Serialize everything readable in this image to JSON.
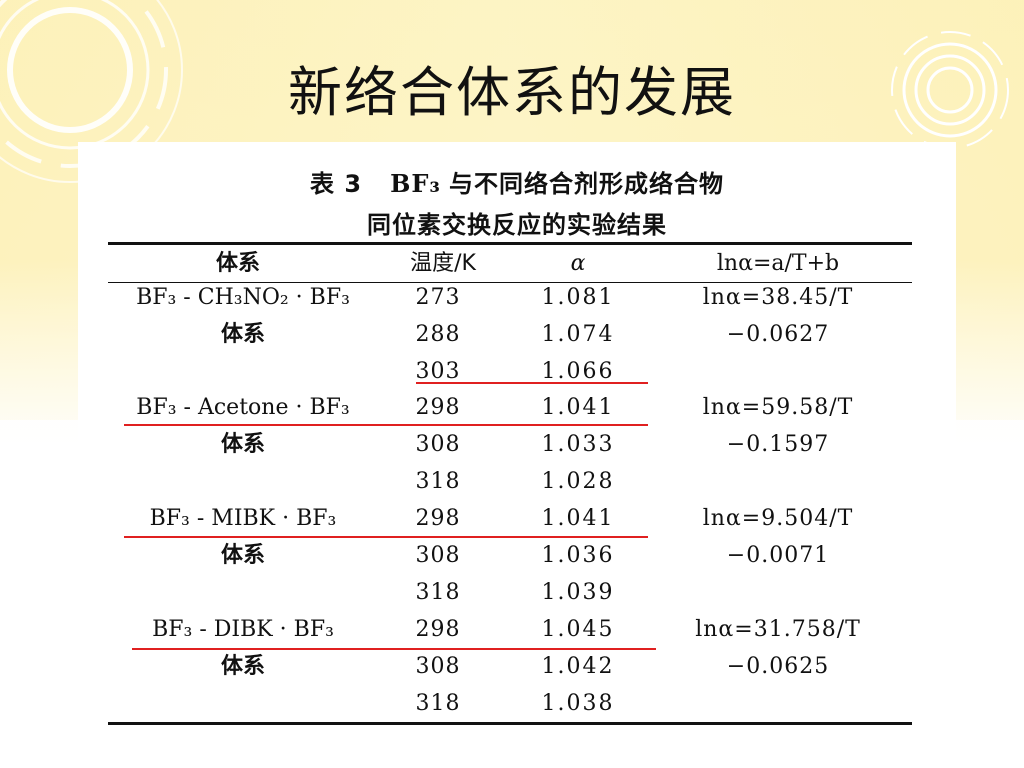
{
  "slide": {
    "title": "新络合体系的发展"
  },
  "table": {
    "caption_number": "表 3",
    "caption_formula": "BF₃",
    "caption_rest": "与不同络合剂形成络合物",
    "caption_line2": "同位素交换反应的实验结果",
    "headers": {
      "system": "体系",
      "temperature": "温度/K",
      "alpha": "α",
      "equation": "lnα=a/T+b"
    },
    "groups": [
      {
        "name": "BF₃ - CH₃NO₂ · BF₃",
        "sub": "体系",
        "rows": [
          {
            "temp": "273",
            "alpha": "1.081"
          },
          {
            "temp": "288",
            "alpha": "1.074"
          },
          {
            "temp": "303",
            "alpha": "1.066"
          }
        ],
        "eq1": "lnα=38.45/T",
        "eq2": "−0.0627"
      },
      {
        "name": "BF₃ - Acetone · BF₃",
        "sub": "体系",
        "rows": [
          {
            "temp": "298",
            "alpha": "1.041"
          },
          {
            "temp": "308",
            "alpha": "1.033"
          },
          {
            "temp": "318",
            "alpha": "1.028"
          }
        ],
        "eq1": "lnα=59.58/T",
        "eq2": "−0.1597"
      },
      {
        "name": "BF₃ - MIBK · BF₃",
        "sub": "体系",
        "rows": [
          {
            "temp": "298",
            "alpha": "1.041"
          },
          {
            "temp": "308",
            "alpha": "1.036"
          },
          {
            "temp": "318",
            "alpha": "1.039"
          }
        ],
        "eq1": "lnα=9.504/T",
        "eq2": "−0.0071"
      },
      {
        "name": "BF₃ - DIBK · BF₃",
        "sub": "体系",
        "rows": [
          {
            "temp": "298",
            "alpha": "1.045"
          },
          {
            "temp": "308",
            "alpha": "1.042"
          },
          {
            "temp": "318",
            "alpha": "1.038"
          }
        ],
        "eq1": "lnα=31.758/T",
        "eq2": "−0.0625"
      }
    ]
  },
  "colors": {
    "highlight_line": "#e02020",
    "background": "#fdf3c6"
  }
}
